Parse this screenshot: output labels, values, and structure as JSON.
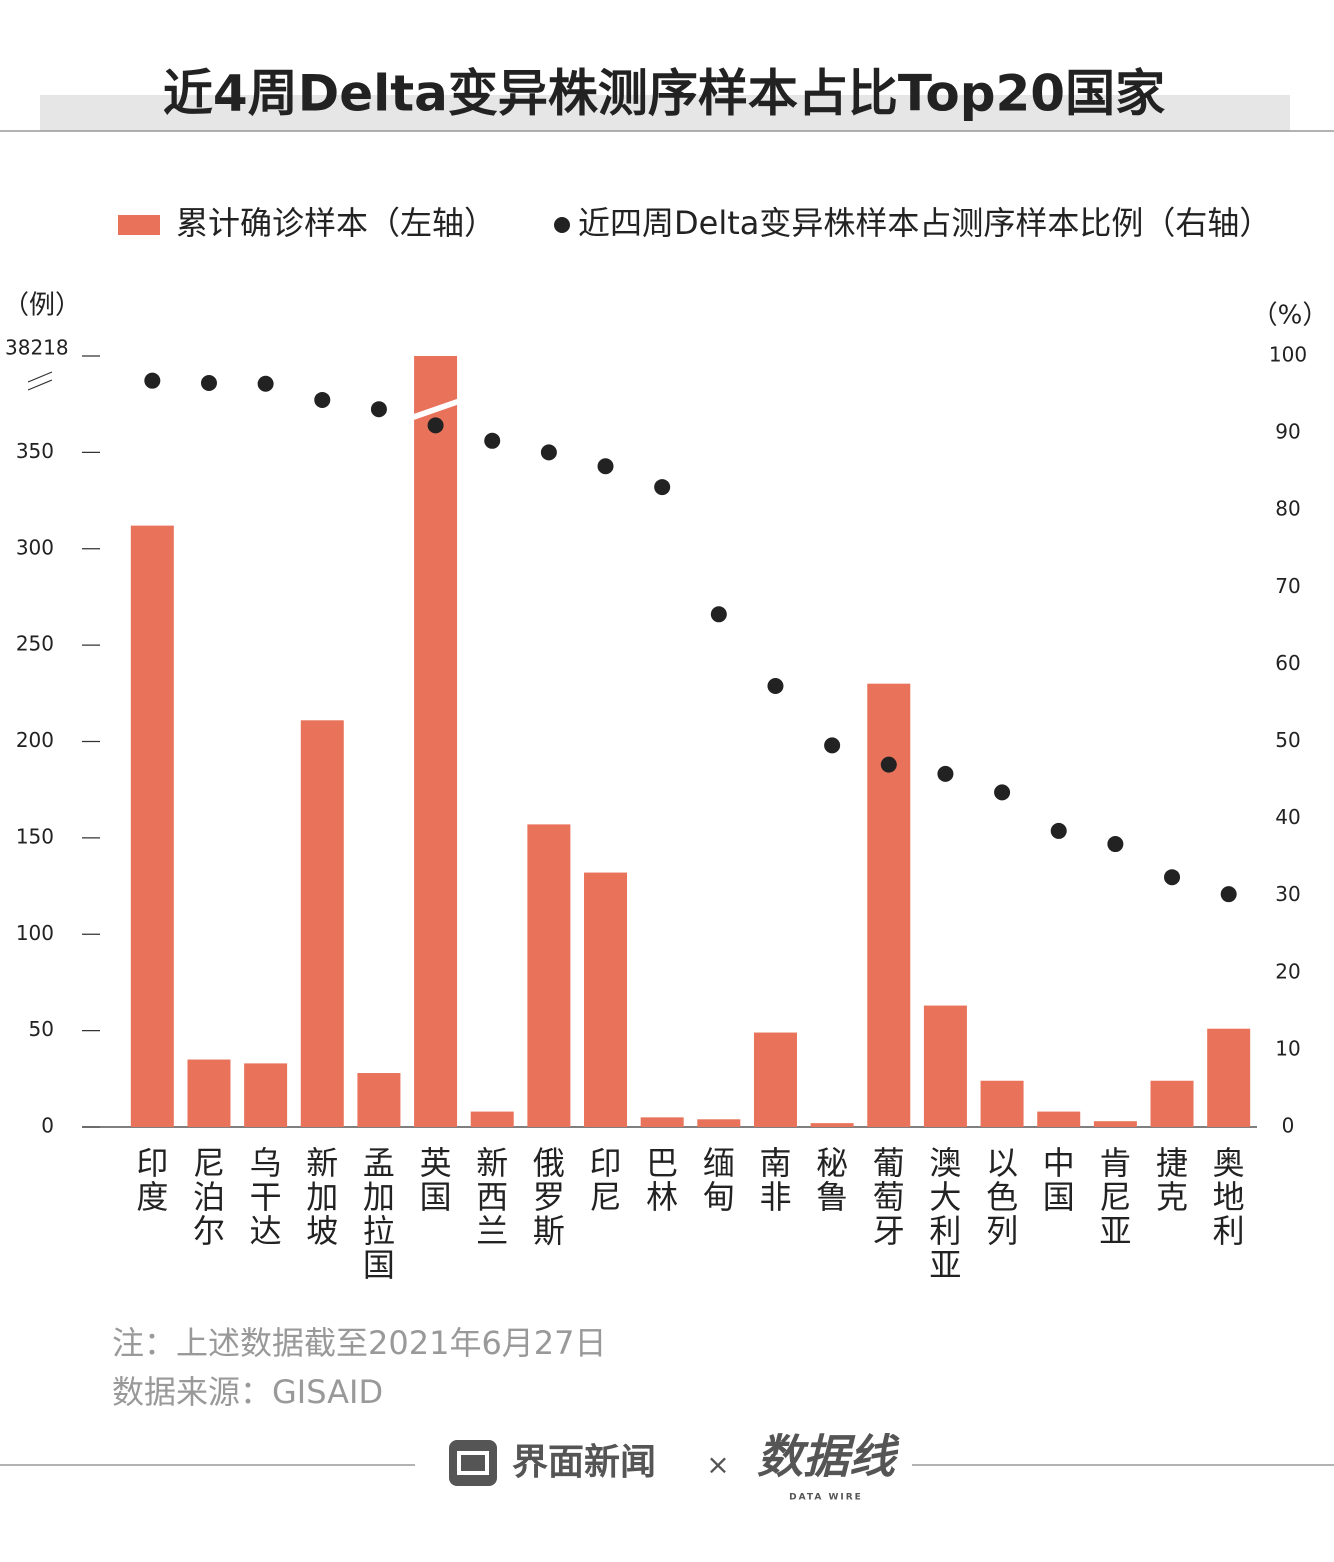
{
  "chart_data": {
    "type": "combo",
    "title": "近4周Delta变异株测序样本占比Top20国家",
    "y_label": "（例）",
    "y2_label": "（%）",
    "categories": [
      "印度",
      "尼泊尔",
      "乌干达",
      "新加坡",
      "孟加拉国",
      "英国",
      "新西兰",
      "俄罗斯",
      "印尼",
      "巴林",
      "缅甸",
      "南非",
      "秘鲁",
      "葡萄牙",
      "澳大利亚",
      "以色列",
      "中国",
      "肯尼亚",
      "捷克",
      "奥地利"
    ],
    "series": [
      {
        "name": "累计确诊样本（左轴）",
        "type": "bar",
        "color": "#e8735a",
        "values": [
          312,
          35,
          33,
          211,
          28,
          38218,
          8,
          157,
          132,
          5,
          4,
          49,
          2,
          230,
          63,
          24,
          8,
          3,
          24,
          51
        ]
      },
      {
        "name": "近四周Delta变异株样本占测序样本比例（右轴）",
        "type": "scatter",
        "axis": "y2",
        "color": "#222222",
        "values": [
          96.8,
          96.5,
          96.4,
          94.3,
          93.1,
          91.0,
          89.0,
          87.5,
          85.7,
          83.0,
          66.5,
          57.2,
          49.5,
          47.0,
          45.8,
          43.4,
          38.4,
          36.7,
          32.4,
          30.2
        ]
      }
    ],
    "ylim": [
      0,
      38218
    ],
    "yticks": [
      0,
      50,
      100,
      150,
      200,
      250,
      300,
      350,
      38218
    ],
    "axis_break": true,
    "y2lim": [
      0,
      100
    ],
    "y2ticks": [
      0,
      10,
      20,
      30,
      40,
      50,
      60,
      70,
      80,
      90,
      100
    ],
    "notes": [
      "注：上述数据截至2021年6月27日",
      "数据来源：GISAID"
    ],
    "footer": {
      "brand": "界面新闻",
      "separator": "×",
      "partner": "数据线",
      "partner_sub": "DATA WIRE"
    }
  }
}
